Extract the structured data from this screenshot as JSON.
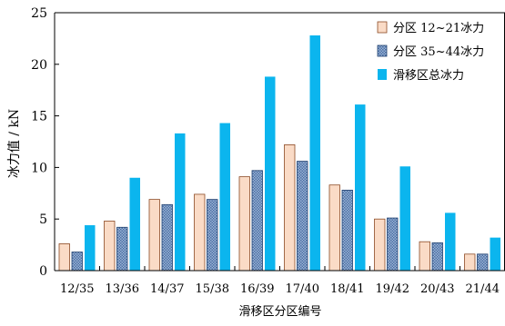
{
  "chart_data": {
    "type": "bar",
    "title": "",
    "xlabel": "滑移区分区编号",
    "ylabel": "冰力值 / kN",
    "ylim": [
      0,
      25
    ],
    "yticks": [
      0,
      5,
      10,
      15,
      20,
      25
    ],
    "grid": false,
    "legend_position": "top-right",
    "categories": [
      "12/35",
      "13/36",
      "14/37",
      "15/38",
      "16/39",
      "17/40",
      "18/41",
      "19/42",
      "20/43",
      "21/44"
    ],
    "series": [
      {
        "name": "分区 12~21冰力",
        "color": "#FADBC6",
        "pattern": "solid",
        "values": [
          2.6,
          4.8,
          6.9,
          7.4,
          9.1,
          12.2,
          8.3,
          5.0,
          2.8,
          1.6
        ]
      },
      {
        "name": "分区 35~44冰力",
        "color": "#9DB5D5",
        "pattern": "hatched",
        "values": [
          1.8,
          4.2,
          6.4,
          6.9,
          9.7,
          10.6,
          7.8,
          5.1,
          2.7,
          1.6
        ]
      },
      {
        "name": "滑移区总冰力",
        "color": "#0BB5EE",
        "pattern": "solid",
        "values": [
          4.4,
          9.0,
          13.3,
          14.3,
          18.8,
          22.8,
          16.1,
          10.1,
          5.6,
          3.2
        ]
      }
    ]
  }
}
